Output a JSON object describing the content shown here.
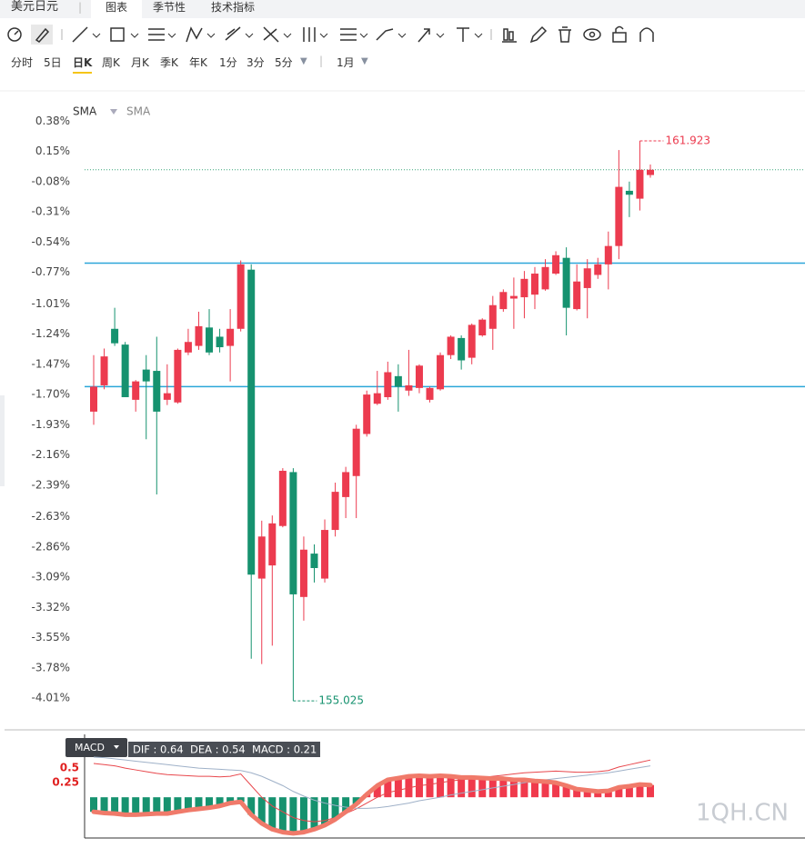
{
  "header": {
    "symbol": "美元日元",
    "tabs": [
      "图表",
      "季节性",
      "技术指标"
    ],
    "active_tab": 0
  },
  "periods": [
    "分时",
    "5日",
    "日K",
    "周K",
    "月K",
    "季K",
    "年K",
    "1分",
    "3分",
    "5分"
  ],
  "active_period": 2,
  "period_menu": "1月",
  "watermark": "1QH.CN",
  "chart_data": [
    {
      "type": "candlestick",
      "indicators": [
        "SMA",
        "SMA"
      ],
      "open": [
        -1.83,
        -1.63,
        -1.2,
        -1.32,
        -1.74,
        -1.51,
        -1.52,
        -1.74,
        -1.76,
        -1.38,
        -1.33,
        -1.19,
        -1.26,
        -1.33,
        -1.2,
        -0.75,
        -3.1,
        -3.0,
        -2.7,
        -2.29,
        -3.24,
        -2.91,
        -3.1,
        -2.73,
        -2.48,
        -2.32,
        -2.0,
        -1.77,
        -1.72,
        -1.56,
        -1.67,
        -1.65,
        -1.74,
        -1.66,
        -1.4,
        -1.27,
        -1.42,
        -1.25,
        -1.2,
        -1.05,
        -0.97,
        -0.96,
        -0.94,
        -0.9,
        -0.78,
        -0.66,
        -1.05,
        -0.89,
        -0.79,
        -0.71,
        -0.57,
        -0.15,
        -0.21,
        -0.03
      ],
      "high": [
        -1.4,
        -1.35,
        -1.04,
        -1.3,
        -1.59,
        -1.4,
        -1.26,
        -1.47,
        -1.35,
        -1.2,
        -1.07,
        -1.05,
        -1.2,
        -1.05,
        -0.68,
        -0.71,
        -2.66,
        -2.62,
        -2.26,
        -2.26,
        -2.78,
        -2.84,
        -2.65,
        -2.37,
        -2.25,
        -1.93,
        -1.67,
        -1.52,
        -1.45,
        -1.47,
        -1.36,
        -1.47,
        -1.64,
        -1.38,
        -1.25,
        -1.25,
        -1.16,
        -1.12,
        -0.95,
        -0.9,
        -0.81,
        -0.76,
        -0.73,
        -0.67,
        -0.61,
        -0.58,
        -0.71,
        -0.67,
        -0.66,
        -0.46,
        0.16,
        -0.08,
        0.23,
        0.05
      ],
      "low": [
        -1.93,
        -1.66,
        -1.33,
        -1.72,
        -1.83,
        -2.04,
        -2.46,
        -1.78,
        -1.77,
        -1.4,
        -1.36,
        -1.4,
        -1.38,
        -1.6,
        -1.22,
        -3.71,
        -3.75,
        -3.61,
        -2.71,
        -4.03,
        -3.42,
        -3.13,
        -3.13,
        -2.78,
        -2.64,
        -2.64,
        -2.02,
        -1.78,
        -1.74,
        -1.83,
        -1.71,
        -1.69,
        -1.76,
        -1.67,
        -1.43,
        -1.51,
        -1.47,
        -1.26,
        -1.36,
        -1.07,
        -1.2,
        -1.12,
        -1.05,
        -0.91,
        -0.79,
        -1.25,
        -1.06,
        -1.12,
        -0.82,
        -0.9,
        -0.67,
        -0.35,
        -0.3,
        -0.05
      ],
      "close": [
        -1.64,
        -1.41,
        -1.31,
        -1.72,
        -1.6,
        -1.6,
        -1.83,
        -1.69,
        -1.36,
        -1.3,
        -1.18,
        -1.38,
        -1.34,
        -1.2,
        -0.71,
        -3.07,
        -2.78,
        -2.68,
        -2.28,
        -3.22,
        -2.88,
        -3.02,
        -2.73,
        -2.44,
        -2.29,
        -1.96,
        -1.7,
        -1.69,
        -1.53,
        -1.64,
        -1.63,
        -1.48,
        -1.65,
        -1.4,
        -1.26,
        -1.44,
        -1.17,
        -1.13,
        -1.02,
        -0.92,
        -0.95,
        -0.82,
        -0.78,
        -0.73,
        -0.64,
        -1.04,
        -0.84,
        -0.74,
        -0.71,
        -0.57,
        -0.12,
        -0.18,
        0.01,
        0.01
      ],
      "up_color": "#ec3b4f",
      "down_color": "#16926f",
      "ylim": [
        -4.23,
        0.61
      ],
      "yticks": [
        {
          "value": 0.38,
          "label": "0.38%"
        },
        {
          "value": 0.15,
          "label": "0.15%"
        },
        {
          "value": -0.08,
          "label": "-0.08%"
        },
        {
          "value": -0.31,
          "label": "-0.31%"
        },
        {
          "value": -0.54,
          "label": "-0.54%"
        },
        {
          "value": -0.77,
          "label": "-0.77%"
        },
        {
          "value": -1.01,
          "label": "-1.01%"
        },
        {
          "value": -1.24,
          "label": "-1.24%"
        },
        {
          "value": -1.47,
          "label": "-1.47%"
        },
        {
          "value": -1.7,
          "label": "-1.70%"
        },
        {
          "value": -1.93,
          "label": "-1.93%"
        },
        {
          "value": -2.16,
          "label": "-2.16%"
        },
        {
          "value": -2.39,
          "label": "-2.39%"
        },
        {
          "value": -2.63,
          "label": "-2.63%"
        },
        {
          "value": -2.86,
          "label": "-2.86%"
        },
        {
          "value": -3.09,
          "label": "-3.09%"
        },
        {
          "value": -3.32,
          "label": "-3.32%"
        },
        {
          "value": -3.55,
          "label": "-3.55%"
        },
        {
          "value": -3.78,
          "label": "-3.78%"
        },
        {
          "value": -4.01,
          "label": "-4.01%"
        }
      ],
      "hlines": [
        {
          "value": -0.7,
          "color": "#2ba6d9"
        },
        {
          "value": -1.64,
          "color": "#2ba6d9"
        }
      ],
      "dotted_line": {
        "value": 0.01,
        "color": "#3aa57a"
      },
      "high_label": "161.923",
      "high_label_color": "#ec3b4f",
      "low_label": "155.025",
      "low_label_color": "#16926f"
    },
    {
      "type": "macd",
      "title": "MACD",
      "legend": "DIF : 0.64  DEA : 0.54  MACD : 0.21",
      "values": [
        -0.25,
        -0.27,
        -0.28,
        -0.3,
        -0.3,
        -0.29,
        -0.28,
        -0.28,
        -0.25,
        -0.22,
        -0.2,
        -0.18,
        -0.15,
        -0.1,
        -0.08,
        -0.3,
        -0.45,
        -0.55,
        -0.6,
        -0.62,
        -0.6,
        -0.55,
        -0.48,
        -0.38,
        -0.25,
        -0.12,
        0.05,
        0.2,
        0.3,
        0.33,
        0.36,
        0.37,
        0.36,
        0.37,
        0.36,
        0.34,
        0.34,
        0.33,
        0.32,
        0.32,
        0.3,
        0.3,
        0.28,
        0.27,
        0.25,
        0.2,
        0.14,
        0.12,
        0.1,
        0.11,
        0.17,
        0.19,
        0.22,
        0.21
      ],
      "up_color": "#f03a4c",
      "down_color": "#16926f",
      "envelope_color": "#f07a6a",
      "series": [
        {
          "color": "#e8474c",
          "values": [
            0.58,
            0.56,
            0.54,
            0.5,
            0.47,
            0.44,
            0.41,
            0.39,
            0.38,
            0.37,
            0.36,
            0.36,
            0.35,
            0.36,
            0.4,
            0.2,
            0.0,
            -0.15,
            -0.25,
            -0.35,
            -0.4,
            -0.42,
            -0.4,
            -0.35,
            -0.28,
            -0.2,
            -0.1,
            0.0,
            0.08,
            0.12,
            0.16,
            0.2,
            0.22,
            0.25,
            0.28,
            0.3,
            0.32,
            0.34,
            0.36,
            0.38,
            0.4,
            0.42,
            0.43,
            0.44,
            0.45,
            0.44,
            0.43,
            0.43,
            0.44,
            0.46,
            0.52,
            0.56,
            0.6,
            0.64
          ]
        },
        {
          "color": "#9fb1c8",
          "values": [
            0.69,
            0.68,
            0.66,
            0.64,
            0.62,
            0.6,
            0.58,
            0.56,
            0.54,
            0.52,
            0.5,
            0.49,
            0.48,
            0.47,
            0.46,
            0.42,
            0.36,
            0.28,
            0.2,
            0.1,
            0.02,
            -0.05,
            -0.1,
            -0.14,
            -0.17,
            -0.19,
            -0.19,
            -0.18,
            -0.16,
            -0.13,
            -0.1,
            -0.06,
            -0.03,
            0.0,
            0.04,
            0.07,
            0.1,
            0.13,
            0.16,
            0.19,
            0.22,
            0.25,
            0.28,
            0.3,
            0.32,
            0.34,
            0.36,
            0.38,
            0.4,
            0.42,
            0.45,
            0.48,
            0.51,
            0.54
          ]
        }
      ],
      "ylim": [
        -0.7,
        1.08
      ],
      "yticks": [
        0.25,
        0.5
      ],
      "tick_color": "#e02020"
    }
  ]
}
